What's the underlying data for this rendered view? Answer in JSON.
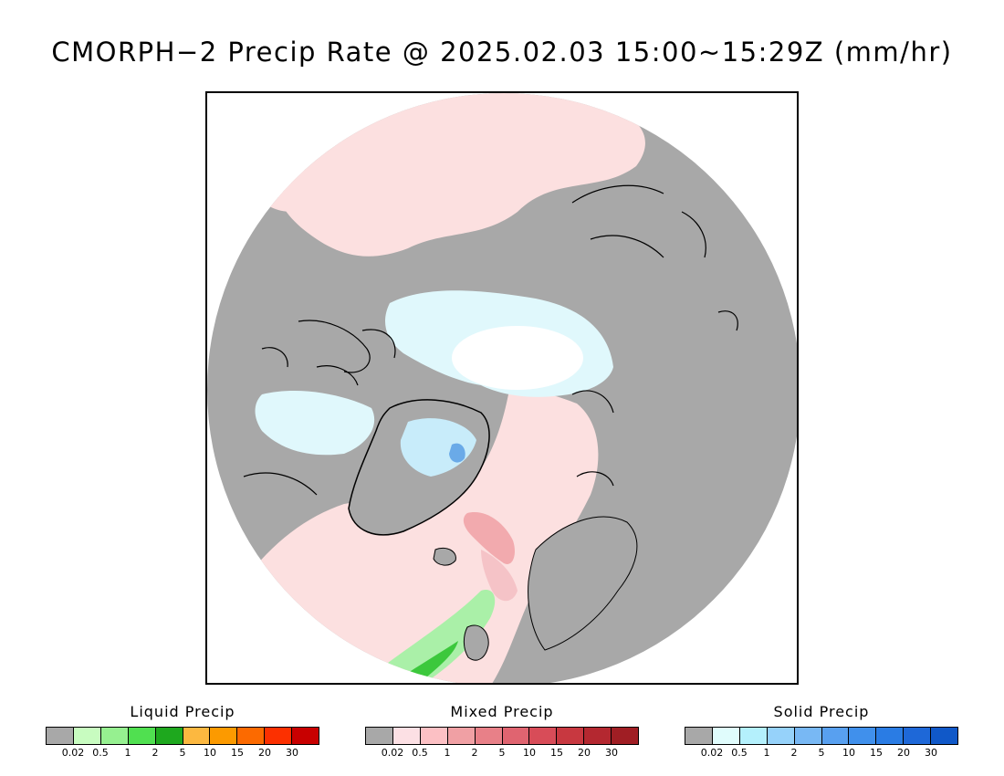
{
  "title": "CMORPH−2 Precip Rate @ 2025.02.03 15:00~15:29Z (mm/hr)",
  "map": {
    "colors": {
      "land": "#a8a8a8",
      "mixed_light": "#fce0e0",
      "mixed_mid": "#f4a8aa",
      "snow_light": "#e0f8fc",
      "snow_mid": "#a8d8f4",
      "snow_blue": "#6aaae8",
      "rain_light": "#aaf0a8",
      "rain_mid": "#3cc83c",
      "rain_dark": "#1ea01e",
      "coast": "#000000"
    }
  },
  "legends": [
    {
      "title": "Liquid Precip",
      "colors": [
        "#a8a8a8",
        "#c8fcc0",
        "#96f090",
        "#50e050",
        "#1ea81e",
        "#fcb840",
        "#fc9a00",
        "#fc6a00",
        "#fc3000",
        "#c80000"
      ],
      "ticks": [
        "0.02",
        "0.5",
        "1",
        "2",
        "5",
        "10",
        "15",
        "20",
        "30"
      ]
    },
    {
      "title": "Mixed Precip",
      "colors": [
        "#a8a8a8",
        "#fce0e4",
        "#fcc0c4",
        "#f0a0a4",
        "#e88088",
        "#e06470",
        "#d84c58",
        "#c83840",
        "#b42830",
        "#a01e24"
      ],
      "ticks": [
        "0.02",
        "0.5",
        "1",
        "2",
        "5",
        "10",
        "15",
        "20",
        "30"
      ]
    },
    {
      "title": "Solid Precip",
      "colors": [
        "#a8a8a8",
        "#e0fcfc",
        "#b4f0fc",
        "#96d2fa",
        "#78b8f4",
        "#58a0f0",
        "#4090ec",
        "#2a7ce4",
        "#1e68d8",
        "#1058c8"
      ],
      "ticks": [
        "0.02",
        "0.5",
        "1",
        "2",
        "5",
        "10",
        "15",
        "20",
        "30"
      ]
    }
  ]
}
